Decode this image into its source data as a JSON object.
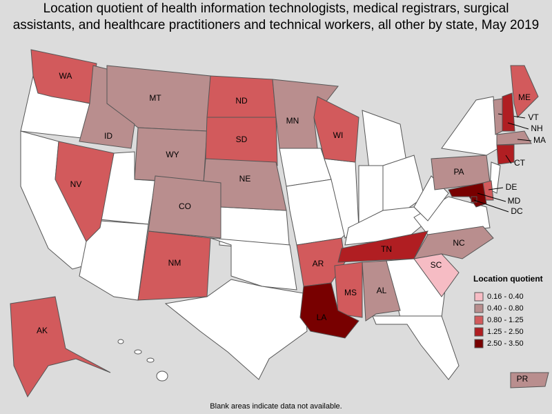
{
  "title": [
    "Location quotient of health information technologists, medical registrars, surgical",
    "assistants, and healthcare practitioners and technical workers, all other by state, May 2019"
  ],
  "legend": {
    "title": "Location quotient",
    "items": [
      {
        "label": "0.16 - 0.40",
        "color": "#f6bcc4"
      },
      {
        "label": "0.40 - 0.80",
        "color": "#b98e8e"
      },
      {
        "label": "0.80 - 1.25",
        "color": "#d25a5c"
      },
      {
        "label": "1.25 - 2.50",
        "color": "#b01e22"
      },
      {
        "label": "2.50 - 3.50",
        "color": "#780000"
      }
    ]
  },
  "states": [
    {
      "label": "WA",
      "class": 2
    },
    {
      "label": "MT",
      "class": 1
    },
    {
      "label": "ID",
      "class": 1
    },
    {
      "label": "WY",
      "class": 1
    },
    {
      "label": "ND",
      "class": 2
    },
    {
      "label": "SD",
      "class": 2
    },
    {
      "label": "MN",
      "class": 1
    },
    {
      "label": "WI",
      "class": 2
    },
    {
      "label": "NE",
      "class": 1
    },
    {
      "label": "CO",
      "class": 1
    },
    {
      "label": "NV",
      "class": 2
    },
    {
      "label": "NM",
      "class": 2
    },
    {
      "label": "AR",
      "class": 2
    },
    {
      "label": "MS",
      "class": 2
    },
    {
      "label": "AL",
      "class": 1
    },
    {
      "label": "LA",
      "class": 4
    },
    {
      "label": "TN",
      "class": 3
    },
    {
      "label": "NC",
      "class": 1
    },
    {
      "label": "SC",
      "class": 0
    },
    {
      "label": "PA",
      "class": 1
    },
    {
      "label": "ME",
      "class": 2
    },
    {
      "label": "VT",
      "class": 1
    },
    {
      "label": "NH",
      "class": 3
    },
    {
      "label": "MA",
      "class": 1
    },
    {
      "label": "CT",
      "class": 3
    },
    {
      "label": "DE",
      "class": 2
    },
    {
      "label": "MD",
      "class": 4
    },
    {
      "label": "DC",
      "class": 4
    },
    {
      "label": "AK",
      "class": 2
    },
    {
      "label": "PR",
      "class": 1
    }
  ],
  "footnote": "Blank areas indicate data not available."
}
